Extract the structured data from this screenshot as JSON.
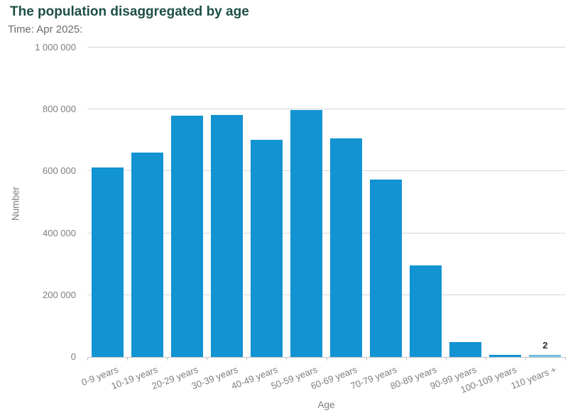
{
  "header": {
    "title": "The population disaggregated by age",
    "subtitle": "Time: Apr 2025:"
  },
  "chart_data": {
    "type": "bar",
    "title": "The population disaggregated by age",
    "subtitle": "Time: Apr 2025:",
    "xlabel": "Age",
    "ylabel": "Number",
    "ylim": [
      0,
      1000000
    ],
    "ytick_interval": 200000,
    "ytick_labels": [
      "0",
      "200 000",
      "400 000",
      "600 000",
      "800 000",
      "1 000 000"
    ],
    "categories": [
      "0-9 years",
      "10-19 years",
      "20-29 years",
      "30-39 years",
      "40-49 years",
      "50-59 years",
      "60-69 years",
      "70-79 years",
      "80-89 years",
      "90-99 years",
      "100-109 years",
      "110 years +"
    ],
    "values": [
      612000,
      660000,
      779000,
      783000,
      701000,
      798000,
      706000,
      573000,
      295000,
      48000,
      6000,
      2
    ],
    "point_labels": [
      "",
      "",
      "",
      "",
      "",
      "",
      "",
      "",
      "",
      "",
      "",
      "2"
    ],
    "grid": true,
    "legend": false,
    "colors": {
      "bar": "#1293d2",
      "tiny_bar": "#72bfe3",
      "grid": "#d6d6d6",
      "axis_line": "#c3c3c3",
      "title": "#1e4f46",
      "subtitle": "#6b6b6b",
      "axis_text": "#7e7e7e",
      "data_label": "#2b2b2b"
    }
  }
}
